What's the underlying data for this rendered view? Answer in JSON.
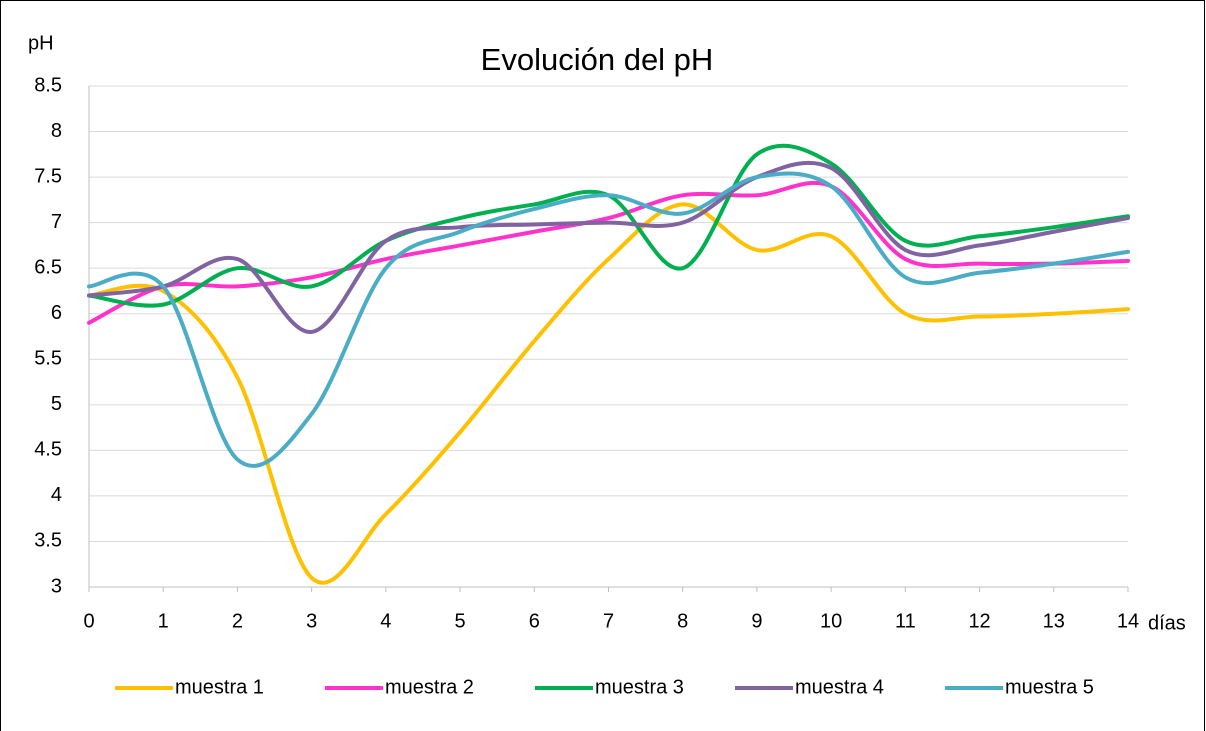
{
  "chart_data": {
    "type": "line",
    "title": "Evolución  del pH",
    "ylabel": "pH",
    "xlabel": "días",
    "x": [
      0,
      1,
      2,
      3,
      4,
      5,
      6,
      7,
      8,
      9,
      10,
      11,
      12,
      13,
      14
    ],
    "xlim": [
      0,
      14
    ],
    "xticks": [
      0,
      1,
      2,
      3,
      4,
      5,
      6,
      7,
      8,
      9,
      10,
      11,
      12,
      13,
      14
    ],
    "ylim": [
      3,
      8.5
    ],
    "yticks": [
      3,
      3.5,
      4,
      4.5,
      5,
      5.5,
      6,
      6.5,
      7,
      7.5,
      8,
      8.5
    ],
    "grid": true,
    "smooth": true,
    "legend": "bottom",
    "series": [
      {
        "name": "muestra 1",
        "color": "#ffc000",
        "values": [
          6.2,
          6.25,
          5.3,
          3.1,
          3.8,
          4.7,
          5.7,
          6.6,
          7.2,
          6.7,
          6.85,
          6.0,
          5.97,
          6.0,
          6.05
        ]
      },
      {
        "name": "muestra 2",
        "color": "#ff33cc",
        "values": [
          5.9,
          6.3,
          6.3,
          6.4,
          6.6,
          6.75,
          6.9,
          7.05,
          7.3,
          7.3,
          7.4,
          6.6,
          6.55,
          6.55,
          6.58
        ]
      },
      {
        "name": "muestra 3",
        "color": "#00b050",
        "values": [
          6.2,
          6.1,
          6.5,
          6.3,
          6.8,
          7.05,
          7.2,
          7.3,
          6.5,
          7.75,
          7.65,
          6.8,
          6.85,
          6.95,
          7.07
        ]
      },
      {
        "name": "muestra 4",
        "color": "#8064a2",
        "values": [
          6.2,
          6.3,
          6.6,
          5.8,
          6.8,
          6.95,
          6.98,
          7.0,
          7.0,
          7.5,
          7.6,
          6.7,
          6.75,
          6.9,
          7.05
        ]
      },
      {
        "name": "muestra 5",
        "color": "#4bacc6",
        "values": [
          6.3,
          6.3,
          4.4,
          4.9,
          6.5,
          6.9,
          7.15,
          7.3,
          7.1,
          7.5,
          7.4,
          6.4,
          6.45,
          6.55,
          6.68
        ]
      }
    ]
  }
}
